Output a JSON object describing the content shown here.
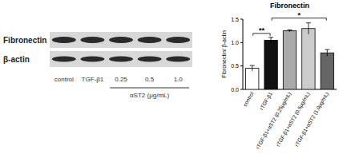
{
  "chart_data": {
    "type": "bar",
    "title": "Fibronectin",
    "y_label": "Fibronectin/ β-actin",
    "categories": [
      "control",
      "rTGF-β1",
      "rTGF-β1+αST2 (0.25μg/mL)",
      "rTGF-β1+αST2 (0.5μg/mL)",
      "rTGF-β1+αST2 (1.0μg/mL)"
    ],
    "values": [
      0.45,
      1.05,
      1.25,
      1.3,
      0.78
    ],
    "errors": [
      0.06,
      0.06,
      0.02,
      0.12,
      0.07
    ],
    "colors": [
      "#ffffff",
      "#111111",
      "#aaaaaa",
      "#cccccc",
      "#666666"
    ],
    "ylim": [
      0,
      1.5
    ],
    "yticks": [
      {
        "value": 0,
        "label": "0.0"
      },
      {
        "value": 0.5,
        "label": "0.5"
      },
      {
        "value": 1,
        "label": "1.0"
      },
      {
        "value": 1.5,
        "label": "1.5"
      }
    ],
    "grid": false,
    "annotations": [
      {
        "text": "**",
        "categories": [
          0,
          1
        ]
      },
      {
        "text": "*",
        "categories": [
          1,
          4
        ]
      }
    ]
  },
  "blot": {
    "rows": [
      "Fibronectin",
      "β-actin"
    ],
    "lanes": [
      "control",
      "TGF-β1",
      "0.25",
      "0.5",
      "1.0"
    ],
    "treatment_label": "αST2 (μg/mL)"
  }
}
